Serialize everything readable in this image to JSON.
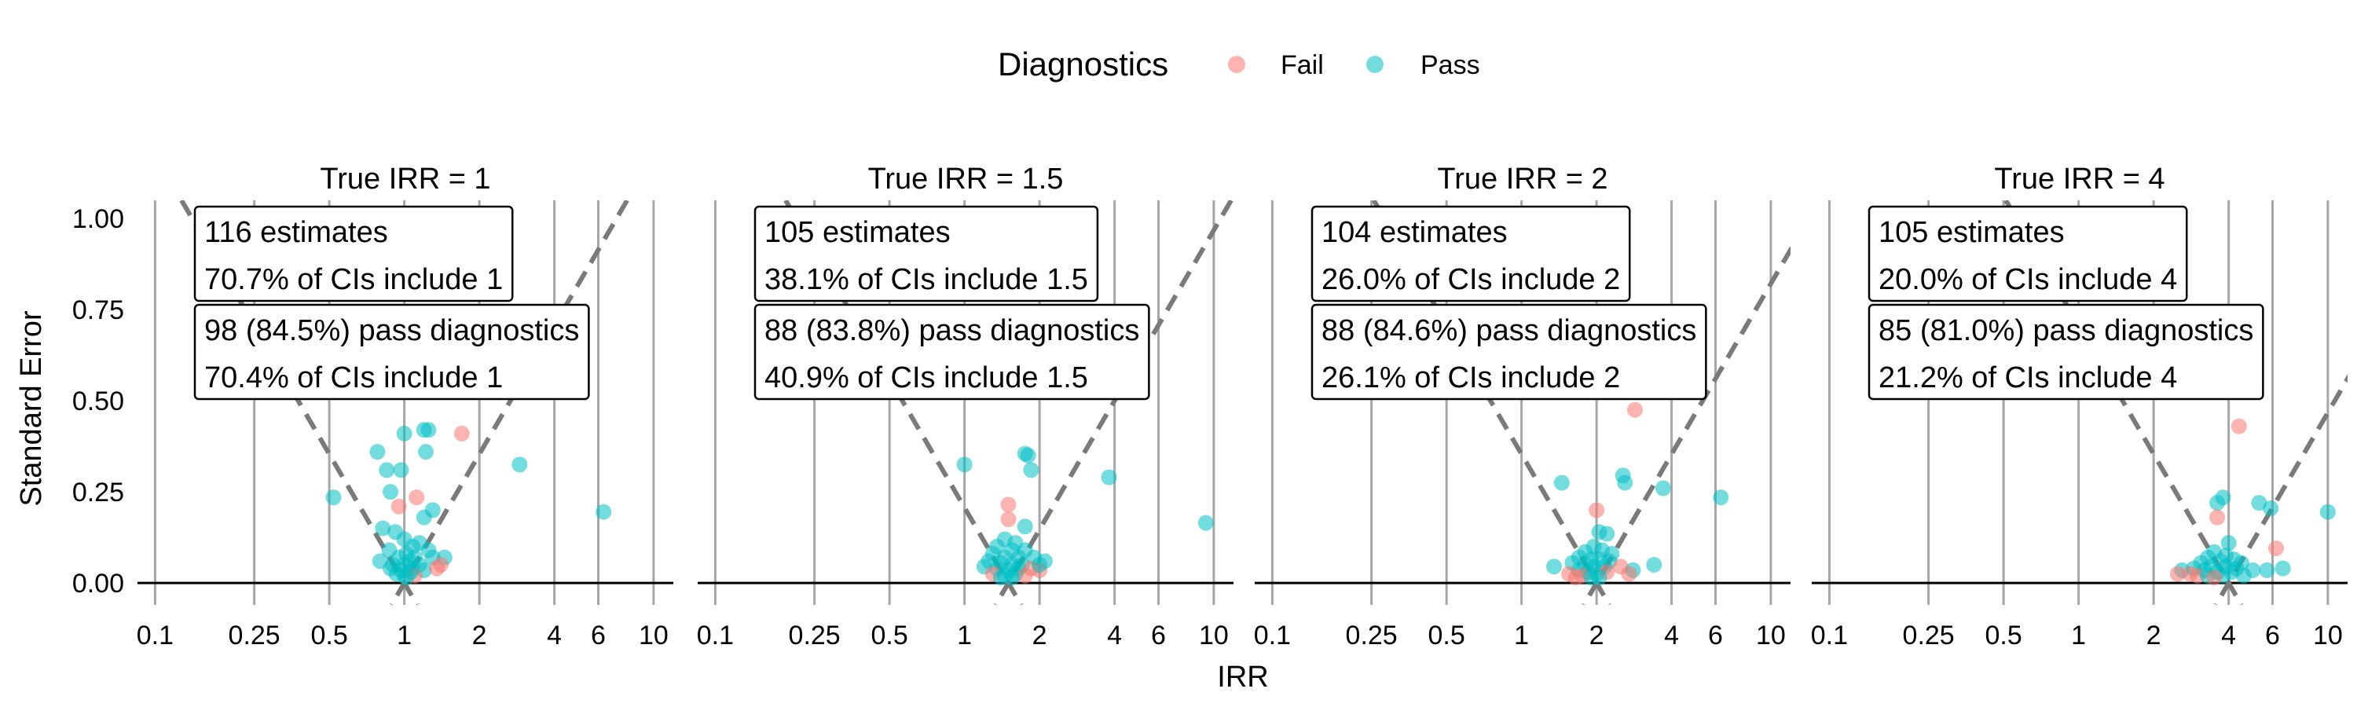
{
  "chart_data": {
    "type": "scatter",
    "xlabel": "IRR",
    "ylabel": "Standard Error",
    "x_scale": "log",
    "xlim": [
      0.085,
      12
    ],
    "ylim": [
      -0.06,
      1.05
    ],
    "x_ticks": [
      0.1,
      0.25,
      0.5,
      1,
      2,
      4,
      6,
      10
    ],
    "x_tick_labels": [
      "0.1",
      "0.25",
      "0.5",
      "1",
      "2",
      "4",
      "6",
      "10"
    ],
    "y_ticks": [
      0,
      0.25,
      0.5,
      0.75,
      1
    ],
    "y_tick_labels": [
      "0.00",
      "0.25",
      "0.50",
      "0.75",
      "1.00"
    ],
    "vertical_reference_lines_at": [
      0.1,
      0.25,
      0.5,
      1,
      2,
      4,
      6,
      10
    ],
    "horizontal_reference_line_at": 0,
    "legend": {
      "title": "Diagnostics",
      "placement": "top",
      "entries": [
        {
          "label": "Fail",
          "color": "#F8766D"
        },
        {
          "label": "Pass",
          "color": "#00BFC4"
        }
      ]
    },
    "panels": [
      {
        "title": "True IRR = 1",
        "true_irr": 1,
        "box1": [
          "116 estimates",
          "70.7% of CIs include 1"
        ],
        "box2": [
          "98 (84.5%) pass diagnostics",
          "70.4% of CIs include 1"
        ],
        "points": [
          {
            "x": 1.0,
            "y": 0.41,
            "pass": true
          },
          {
            "x": 1.2,
            "y": 0.42,
            "pass": true
          },
          {
            "x": 1.25,
            "y": 0.42,
            "pass": true
          },
          {
            "x": 1.7,
            "y": 0.41,
            "pass": false
          },
          {
            "x": 0.78,
            "y": 0.36,
            "pass": true
          },
          {
            "x": 1.22,
            "y": 0.36,
            "pass": true
          },
          {
            "x": 0.85,
            "y": 0.31,
            "pass": true
          },
          {
            "x": 0.97,
            "y": 0.31,
            "pass": true
          },
          {
            "x": 2.9,
            "y": 0.325,
            "pass": true
          },
          {
            "x": 0.52,
            "y": 0.235,
            "pass": true
          },
          {
            "x": 0.88,
            "y": 0.25,
            "pass": true
          },
          {
            "x": 1.12,
            "y": 0.235,
            "pass": false
          },
          {
            "x": 0.95,
            "y": 0.21,
            "pass": false
          },
          {
            "x": 6.3,
            "y": 0.195,
            "pass": true
          },
          {
            "x": 1.3,
            "y": 0.2,
            "pass": true
          },
          {
            "x": 1.2,
            "y": 0.18,
            "pass": true
          },
          {
            "x": 0.82,
            "y": 0.15,
            "pass": true
          },
          {
            "x": 0.92,
            "y": 0.14,
            "pass": true
          },
          {
            "x": 1.0,
            "y": 0.12,
            "pass": true
          },
          {
            "x": 1.08,
            "y": 0.1,
            "pass": true
          },
          {
            "x": 1.15,
            "y": 0.11,
            "pass": true
          },
          {
            "x": 0.87,
            "y": 0.09,
            "pass": true
          },
          {
            "x": 1.02,
            "y": 0.08,
            "pass": true
          },
          {
            "x": 1.25,
            "y": 0.09,
            "pass": true
          },
          {
            "x": 0.95,
            "y": 0.07,
            "pass": true
          },
          {
            "x": 1.1,
            "y": 0.07,
            "pass": true
          },
          {
            "x": 1.3,
            "y": 0.07,
            "pass": true
          },
          {
            "x": 1.45,
            "y": 0.07,
            "pass": true
          },
          {
            "x": 0.8,
            "y": 0.06,
            "pass": true
          },
          {
            "x": 0.9,
            "y": 0.05,
            "pass": true
          },
          {
            "x": 1.0,
            "y": 0.05,
            "pass": true
          },
          {
            "x": 1.05,
            "y": 0.06,
            "pass": true
          },
          {
            "x": 1.15,
            "y": 0.05,
            "pass": true
          },
          {
            "x": 1.4,
            "y": 0.05,
            "pass": false
          },
          {
            "x": 0.88,
            "y": 0.04,
            "pass": true
          },
          {
            "x": 0.97,
            "y": 0.035,
            "pass": true
          },
          {
            "x": 1.08,
            "y": 0.04,
            "pass": true
          },
          {
            "x": 1.2,
            "y": 0.035,
            "pass": true
          },
          {
            "x": 1.35,
            "y": 0.04,
            "pass": false
          },
          {
            "x": 1.0,
            "y": 0.02,
            "pass": true
          },
          {
            "x": 1.1,
            "y": 0.02,
            "pass": false
          },
          {
            "x": 0.93,
            "y": 0.025,
            "pass": true
          },
          {
            "x": 1.02,
            "y": 0.015,
            "pass": true
          },
          {
            "x": 1.06,
            "y": 0.03,
            "pass": true
          }
        ]
      },
      {
        "title": "True IRR = 1.5",
        "true_irr": 1.5,
        "box1": [
          "105 estimates",
          "38.1% of CIs include 1.5"
        ],
        "box2": [
          "88 (83.8%) pass diagnostics",
          "40.9% of CIs include 1.5"
        ],
        "points": [
          {
            "x": 1.75,
            "y": 0.355,
            "pass": true
          },
          {
            "x": 1.8,
            "y": 0.35,
            "pass": true
          },
          {
            "x": 1.0,
            "y": 0.325,
            "pass": true
          },
          {
            "x": 1.85,
            "y": 0.31,
            "pass": true
          },
          {
            "x": 3.8,
            "y": 0.29,
            "pass": true
          },
          {
            "x": 1.5,
            "y": 0.215,
            "pass": false
          },
          {
            "x": 1.5,
            "y": 0.175,
            "pass": false
          },
          {
            "x": 9.3,
            "y": 0.165,
            "pass": true
          },
          {
            "x": 1.75,
            "y": 0.155,
            "pass": true
          },
          {
            "x": 1.45,
            "y": 0.12,
            "pass": true
          },
          {
            "x": 1.6,
            "y": 0.11,
            "pass": true
          },
          {
            "x": 1.35,
            "y": 0.1,
            "pass": true
          },
          {
            "x": 1.55,
            "y": 0.09,
            "pass": true
          },
          {
            "x": 1.75,
            "y": 0.09,
            "pass": true
          },
          {
            "x": 1.3,
            "y": 0.08,
            "pass": true
          },
          {
            "x": 1.45,
            "y": 0.07,
            "pass": true
          },
          {
            "x": 1.65,
            "y": 0.07,
            "pass": true
          },
          {
            "x": 1.9,
            "y": 0.07,
            "pass": true
          },
          {
            "x": 1.25,
            "y": 0.06,
            "pass": true
          },
          {
            "x": 1.4,
            "y": 0.055,
            "pass": true
          },
          {
            "x": 1.55,
            "y": 0.05,
            "pass": true
          },
          {
            "x": 1.7,
            "y": 0.05,
            "pass": true
          },
          {
            "x": 2.1,
            "y": 0.06,
            "pass": true
          },
          {
            "x": 1.2,
            "y": 0.045,
            "pass": true
          },
          {
            "x": 1.35,
            "y": 0.04,
            "pass": true
          },
          {
            "x": 1.5,
            "y": 0.035,
            "pass": true
          },
          {
            "x": 1.65,
            "y": 0.04,
            "pass": true
          },
          {
            "x": 1.85,
            "y": 0.04,
            "pass": false
          },
          {
            "x": 2.0,
            "y": 0.035,
            "pass": false
          },
          {
            "x": 1.3,
            "y": 0.025,
            "pass": false
          },
          {
            "x": 1.45,
            "y": 0.02,
            "pass": true
          },
          {
            "x": 1.6,
            "y": 0.025,
            "pass": true
          },
          {
            "x": 1.75,
            "y": 0.02,
            "pass": false
          },
          {
            "x": 1.4,
            "y": 0.015,
            "pass": true
          },
          {
            "x": 1.55,
            "y": 0.015,
            "pass": true
          },
          {
            "x": 2.0,
            "y": 0.05,
            "pass": true
          }
        ]
      },
      {
        "title": "True IRR = 2",
        "true_irr": 2,
        "box1": [
          "104 estimates",
          "26.0% of CIs include 2"
        ],
        "box2": [
          "88 (84.6%) pass diagnostics",
          "26.1% of CIs include 2"
        ],
        "points": [
          {
            "x": 2.85,
            "y": 0.475,
            "pass": false
          },
          {
            "x": 2.55,
            "y": 0.295,
            "pass": true
          },
          {
            "x": 1.45,
            "y": 0.275,
            "pass": true
          },
          {
            "x": 2.6,
            "y": 0.275,
            "pass": true
          },
          {
            "x": 3.7,
            "y": 0.26,
            "pass": true
          },
          {
            "x": 6.3,
            "y": 0.235,
            "pass": true
          },
          {
            "x": 2.0,
            "y": 0.2,
            "pass": false
          },
          {
            "x": 2.05,
            "y": 0.14,
            "pass": true
          },
          {
            "x": 2.2,
            "y": 0.135,
            "pass": true
          },
          {
            "x": 1.95,
            "y": 0.1,
            "pass": true
          },
          {
            "x": 2.1,
            "y": 0.09,
            "pass": true
          },
          {
            "x": 1.8,
            "y": 0.085,
            "pass": true
          },
          {
            "x": 2.3,
            "y": 0.08,
            "pass": true
          },
          {
            "x": 1.7,
            "y": 0.07,
            "pass": true
          },
          {
            "x": 1.9,
            "y": 0.065,
            "pass": true
          },
          {
            "x": 2.05,
            "y": 0.065,
            "pass": true
          },
          {
            "x": 2.25,
            "y": 0.06,
            "pass": true
          },
          {
            "x": 1.6,
            "y": 0.055,
            "pass": true
          },
          {
            "x": 1.8,
            "y": 0.05,
            "pass": true
          },
          {
            "x": 1.95,
            "y": 0.045,
            "pass": true
          },
          {
            "x": 2.15,
            "y": 0.045,
            "pass": true
          },
          {
            "x": 1.35,
            "y": 0.045,
            "pass": true
          },
          {
            "x": 2.5,
            "y": 0.045,
            "pass": false
          },
          {
            "x": 3.4,
            "y": 0.05,
            "pass": true
          },
          {
            "x": 1.7,
            "y": 0.035,
            "pass": true
          },
          {
            "x": 1.85,
            "y": 0.03,
            "pass": true
          },
          {
            "x": 2.0,
            "y": 0.025,
            "pass": true
          },
          {
            "x": 2.2,
            "y": 0.03,
            "pass": false
          },
          {
            "x": 2.8,
            "y": 0.035,
            "pass": true
          },
          {
            "x": 1.55,
            "y": 0.025,
            "pass": false
          },
          {
            "x": 1.75,
            "y": 0.02,
            "pass": false
          },
          {
            "x": 1.9,
            "y": 0.015,
            "pass": true
          },
          {
            "x": 2.05,
            "y": 0.015,
            "pass": true
          },
          {
            "x": 2.7,
            "y": 0.025,
            "pass": false
          },
          {
            "x": 1.65,
            "y": 0.015,
            "pass": false
          }
        ]
      },
      {
        "title": "True IRR = 4",
        "true_irr": 4,
        "box1": [
          "105 estimates",
          "20.0% of CIs include 4"
        ],
        "box2": [
          "85 (81.0%) pass diagnostics",
          "21.2% of CIs include 4"
        ],
        "points": [
          {
            "x": 4.4,
            "y": 0.43,
            "pass": false
          },
          {
            "x": 3.8,
            "y": 0.235,
            "pass": true
          },
          {
            "x": 3.6,
            "y": 0.22,
            "pass": true
          },
          {
            "x": 5.3,
            "y": 0.22,
            "pass": true
          },
          {
            "x": 5.9,
            "y": 0.205,
            "pass": true
          },
          {
            "x": 10.0,
            "y": 0.195,
            "pass": true
          },
          {
            "x": 3.6,
            "y": 0.18,
            "pass": false
          },
          {
            "x": 4.0,
            "y": 0.11,
            "pass": true
          },
          {
            "x": 6.2,
            "y": 0.095,
            "pass": false
          },
          {
            "x": 3.5,
            "y": 0.085,
            "pass": true
          },
          {
            "x": 3.9,
            "y": 0.075,
            "pass": true
          },
          {
            "x": 3.3,
            "y": 0.07,
            "pass": true
          },
          {
            "x": 4.2,
            "y": 0.065,
            "pass": true
          },
          {
            "x": 3.7,
            "y": 0.06,
            "pass": true
          },
          {
            "x": 3.1,
            "y": 0.055,
            "pass": true
          },
          {
            "x": 4.5,
            "y": 0.055,
            "pass": true
          },
          {
            "x": 3.4,
            "y": 0.045,
            "pass": true
          },
          {
            "x": 3.9,
            "y": 0.045,
            "pass": true
          },
          {
            "x": 2.9,
            "y": 0.04,
            "pass": true
          },
          {
            "x": 4.3,
            "y": 0.04,
            "pass": true
          },
          {
            "x": 2.6,
            "y": 0.035,
            "pass": true
          },
          {
            "x": 3.2,
            "y": 0.035,
            "pass": true
          },
          {
            "x": 3.6,
            "y": 0.03,
            "pass": true
          },
          {
            "x": 4.1,
            "y": 0.03,
            "pass": true
          },
          {
            "x": 5.0,
            "y": 0.035,
            "pass": true
          },
          {
            "x": 5.7,
            "y": 0.035,
            "pass": true
          },
          {
            "x": 6.6,
            "y": 0.04,
            "pass": true
          },
          {
            "x": 2.8,
            "y": 0.025,
            "pass": false
          },
          {
            "x": 3.0,
            "y": 0.02,
            "pass": false
          },
          {
            "x": 3.3,
            "y": 0.02,
            "pass": true
          },
          {
            "x": 3.8,
            "y": 0.02,
            "pass": true
          },
          {
            "x": 2.5,
            "y": 0.025,
            "pass": false
          },
          {
            "x": 4.6,
            "y": 0.02,
            "pass": true
          },
          {
            "x": 3.5,
            "y": 0.015,
            "pass": false
          }
        ]
      }
    ]
  }
}
